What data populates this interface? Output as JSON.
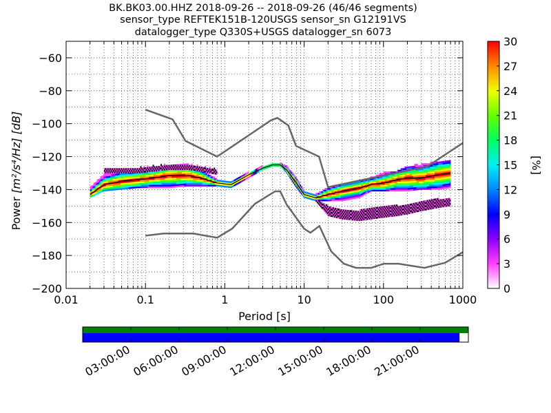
{
  "chart_data": {
    "type": "heatmap",
    "title_lines": [
      "BK.BK03.00.HHZ   2018-09-26 -- 2018-09-26  (46/46 segments)",
      "sensor_type REFTEK151B-120USGS sensor_sn G12191VS",
      "datalogger_type Q330S+USGS datalogger_sn 6073"
    ],
    "xlabel": "Period [s]",
    "ylabel_prefix": "Power ",
    "ylabel_units": "[m²/s⁴/Hz] [dB]",
    "x_scale": "log",
    "xlim": [
      0.01,
      1000
    ],
    "ylim": [
      -200,
      -50
    ],
    "xticks": [
      0.01,
      0.1,
      1,
      10,
      100,
      1000
    ],
    "xtick_labels": [
      "0.01",
      "0.1",
      "1",
      "10",
      "100",
      "1000"
    ],
    "yticks": [
      -200,
      -180,
      -160,
      -140,
      -120,
      -100,
      -80,
      -60
    ],
    "ytick_labels": [
      "−200",
      "−180",
      "−160",
      "−140",
      "−120",
      "−100",
      "−80",
      "−60"
    ],
    "grid": true,
    "colorbar": {
      "label": "[%]",
      "range": [
        0,
        30
      ],
      "ticks": [
        0,
        3,
        6,
        9,
        12,
        15,
        18,
        21,
        24,
        27,
        30
      ],
      "tick_labels": [
        "0",
        "3",
        "6",
        "9",
        "12",
        "15",
        "18",
        "21",
        "24",
        "27",
        "30"
      ],
      "colormap": [
        "#ffffff",
        "#ff40ff",
        "#8a00ff",
        "#0000ff",
        "#0088ff",
        "#00f0f0",
        "#00ff60",
        "#66ff00",
        "#f0ff00",
        "#ff8800",
        "#ff0000"
      ]
    },
    "noise_models": [
      {
        "name": "NHNM",
        "color": "#666666",
        "x": [
          0.1,
          0.22,
          0.32,
          0.8,
          3.8,
          4.6,
          6.3,
          7.9,
          15.4,
          20,
          354.8,
          10000
        ],
        "y": [
          -91.5,
          -97.4,
          -110.5,
          -120,
          -98,
          -96.5,
          -101,
          -113.5,
          -120,
          -138.5,
          -126,
          -80
        ]
      },
      {
        "name": "NLNM",
        "color": "#666666",
        "x": [
          0.1,
          0.17,
          0.4,
          0.8,
          1.24,
          2.4,
          4.3,
          5,
          6,
          10,
          12,
          15.6,
          21.9,
          31.6,
          45,
          70,
          101,
          154,
          328,
          600,
          1000
        ],
        "y": [
          -168,
          -166.7,
          -166.7,
          -169.2,
          -163.7,
          -148.6,
          -141.1,
          -141.1,
          -149,
          -163.8,
          -166.2,
          -162.1,
          -177.5,
          -185,
          -187.5,
          -187.5,
          -185,
          -185,
          -187.5,
          -184.4,
          -178
        ]
      }
    ],
    "psd_lines": [
      {
        "name": "mode",
        "color": "#000000",
        "x": [
          0.02,
          0.03,
          0.05,
          0.08,
          0.12,
          0.2,
          0.35,
          0.5,
          0.8,
          1.2,
          2,
          3,
          4,
          5,
          6,
          8,
          10,
          14,
          20,
          30,
          50,
          70,
          100,
          150,
          200,
          300,
          500,
          700
        ],
        "y": [
          -143,
          -137,
          -135,
          -134,
          -133,
          -131.5,
          -131.5,
          -133,
          -136,
          -137,
          -131,
          -127,
          -125,
          -125,
          -128,
          -136,
          -143,
          -145,
          -143,
          -141,
          -139,
          -137,
          -136,
          -134,
          -133,
          -133,
          -131,
          -130
        ]
      }
    ],
    "psd_bands": [
      {
        "x": [
          0.02,
          0.03,
          0.05,
          0.08,
          0.12,
          0.2,
          0.35,
          0.5,
          0.8,
          1.2,
          2,
          3,
          4,
          5,
          6,
          8,
          10,
          14,
          20,
          30,
          50,
          70,
          100,
          150,
          200,
          300,
          500,
          700
        ],
        "upper": [
          -139,
          -131,
          -128,
          -128,
          -128,
          -125,
          -125,
          -128,
          -134,
          -135,
          -130,
          -126,
          -124,
          -124,
          -126,
          -133,
          -141,
          -143,
          -139,
          -137,
          -135,
          -133,
          -130,
          -129,
          -126,
          -125,
          -123,
          -123
        ],
        "lower": [
          -145,
          -141,
          -140,
          -139,
          -139,
          -139,
          -138,
          -138,
          -138,
          -139,
          -133,
          -128,
          -126,
          -126,
          -130,
          -139,
          -145,
          -147,
          -147,
          -147,
          -145,
          -141,
          -141,
          -141,
          -141,
          -140,
          -140,
          -139
        ]
      },
      {
        "x": [
          14,
          20,
          30,
          50,
          70,
          100,
          150,
          200,
          300,
          500,
          700
        ],
        "upper": [
          -146,
          -150,
          -152,
          -153,
          -151,
          -150,
          -150,
          -149,
          -147,
          -146,
          -145
        ],
        "lower": [
          -147,
          -156,
          -158,
          -159,
          -158,
          -157,
          -156,
          -155,
          -153,
          -151,
          -150
        ]
      },
      {
        "x": [
          0.03,
          0.05,
          0.08,
          0.12,
          0.2,
          0.35,
          0.5,
          0.8
        ],
        "upper": [
          -127,
          -127,
          -127,
          -126,
          -125,
          -125,
          -126,
          -128
        ],
        "lower": [
          -130,
          -130,
          -130,
          -129,
          -128,
          -128,
          -129,
          -131
        ]
      }
    ],
    "timeline": {
      "tick_labels": [
        "03:00:00",
        "06:00:00",
        "09:00:00",
        "12:00:00",
        "15:00:00",
        "18:00:00",
        "21:00:00"
      ],
      "tick_hours": [
        3,
        6,
        9,
        12,
        15,
        18,
        21
      ],
      "range_hours": [
        0,
        24
      ],
      "data_bar_color": "#008000",
      "psd_bar_color": "#0000ff",
      "data_fraction": 1.0,
      "psd_fraction": 0.977
    }
  }
}
